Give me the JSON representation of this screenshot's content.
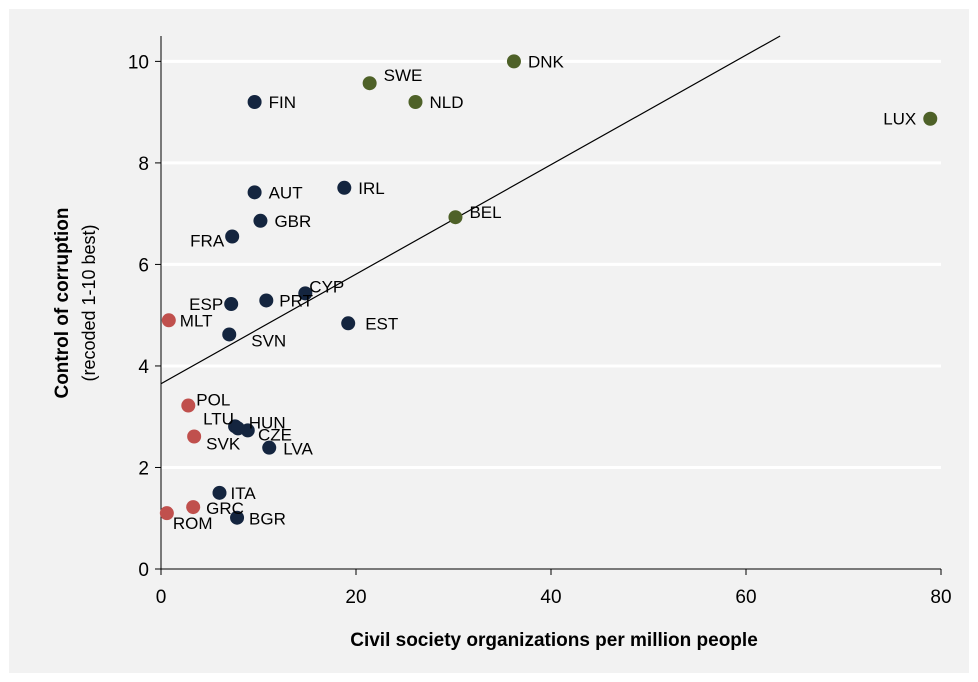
{
  "chart_data": {
    "type": "scatter",
    "xlabel": "Civil society organizations per million people",
    "ylabel": "Control of corruption",
    "ylabel_sub": "(recoded 1-10 best)",
    "xlim": [
      0,
      80
    ],
    "ylim": [
      0,
      10.5
    ],
    "x_ticks": [
      0,
      20,
      40,
      60,
      80
    ],
    "y_ticks": [
      0,
      2,
      4,
      6,
      8,
      10
    ],
    "grid": "horizontal",
    "colors": {
      "background": "#f2f2f2",
      "grid": "#ffffff",
      "navy": "#14253f",
      "olive": "#4e6128",
      "red": "#c0504d",
      "trend": "#000000"
    },
    "trendline": {
      "x": [
        0,
        63.5
      ],
      "y": [
        3.65,
        10.5
      ]
    },
    "points": [
      {
        "label": "DNK",
        "x": 36.2,
        "y": 10.0,
        "color": "olive"
      },
      {
        "label": "SWE",
        "x": 21.4,
        "y": 9.57,
        "color": "olive"
      },
      {
        "label": "NLD",
        "x": 26.1,
        "y": 9.2,
        "color": "olive"
      },
      {
        "label": "LUX",
        "x": 78.9,
        "y": 8.87,
        "color": "olive"
      },
      {
        "label": "BEL",
        "x": 30.2,
        "y": 6.93,
        "color": "olive"
      },
      {
        "label": "FIN",
        "x": 9.6,
        "y": 9.2,
        "color": "navy"
      },
      {
        "label": "AUT",
        "x": 9.6,
        "y": 7.42,
        "color": "navy"
      },
      {
        "label": "IRL",
        "x": 18.8,
        "y": 7.51,
        "color": "navy"
      },
      {
        "label": "GBR",
        "x": 10.2,
        "y": 6.86,
        "color": "navy"
      },
      {
        "label": "FRA",
        "x": 7.3,
        "y": 6.55,
        "color": "navy"
      },
      {
        "label": "CYP",
        "x": 14.8,
        "y": 5.43,
        "color": "navy"
      },
      {
        "label": "PRT",
        "x": 10.8,
        "y": 5.29,
        "color": "navy"
      },
      {
        "label": "ESP",
        "x": 7.2,
        "y": 5.22,
        "color": "navy"
      },
      {
        "label": "EST",
        "x": 19.2,
        "y": 4.84,
        "color": "navy"
      },
      {
        "label": "SVN",
        "x": 7.0,
        "y": 4.62,
        "color": "navy"
      },
      {
        "label": "HUN",
        "x": 8.9,
        "y": 2.73,
        "color": "navy"
      },
      {
        "label": "LTU",
        "x": 7.6,
        "y": 2.81,
        "color": "navy"
      },
      {
        "label": "CZE",
        "x": 7.9,
        "y": 2.77,
        "color": "navy"
      },
      {
        "label": "LVA",
        "x": 11.1,
        "y": 2.39,
        "color": "navy"
      },
      {
        "label": "ITA",
        "x": 6.0,
        "y": 1.5,
        "color": "navy"
      },
      {
        "label": "BGR",
        "x": 7.8,
        "y": 1.01,
        "color": "navy"
      },
      {
        "label": "MLT",
        "x": 0.8,
        "y": 4.9,
        "color": "red"
      },
      {
        "label": "POL",
        "x": 2.8,
        "y": 3.22,
        "color": "red"
      },
      {
        "label": "SVK",
        "x": 3.4,
        "y": 2.61,
        "color": "red"
      },
      {
        "label": "GRC",
        "x": 3.3,
        "y": 1.22,
        "color": "red"
      },
      {
        "label": "ROM",
        "x": 0.6,
        "y": 1.1,
        "color": "red"
      }
    ]
  }
}
